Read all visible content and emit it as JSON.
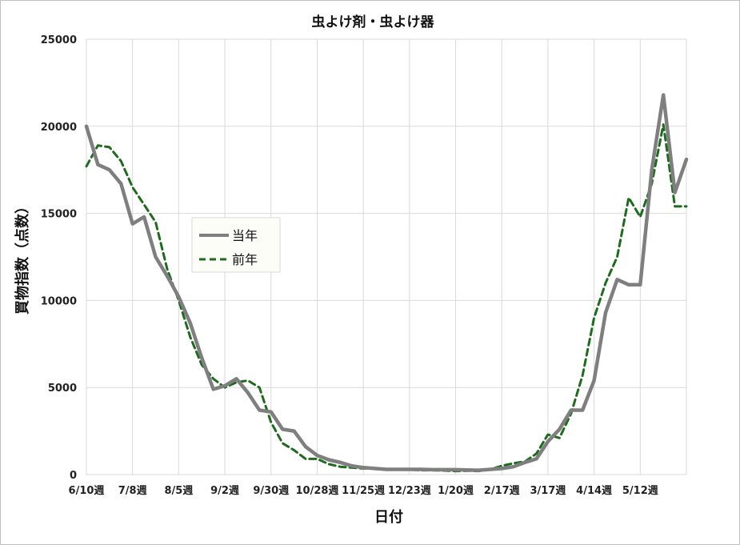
{
  "chart_data": {
    "type": "line",
    "title": "虫よけ剤・虫よけ器",
    "xlabel": "日付",
    "ylabel": "買物指数（点数）",
    "ylim": [
      0,
      25000
    ],
    "yticks": [
      0,
      5000,
      10000,
      15000,
      20000,
      25000
    ],
    "x_tick_labels": [
      "6/10週",
      "7/8週",
      "8/5週",
      "9/2週",
      "9/30週",
      "10/28週",
      "11/25週",
      "12/23週",
      "1/20週",
      "2/17週",
      "3/17週",
      "4/14週",
      "5/12週"
    ],
    "x_tick_step": 4,
    "grid": true,
    "legend_position": "center-left",
    "series": [
      {
        "name": "当年",
        "color": "#7f7f7f",
        "style": "solid",
        "values": [
          20000,
          17800,
          17500,
          16700,
          14400,
          14800,
          12500,
          11400,
          10200,
          8700,
          6700,
          4900,
          5100,
          5500,
          4700,
          3700,
          3600,
          2600,
          2500,
          1600,
          1100,
          850,
          700,
          500,
          400,
          350,
          300,
          300,
          300,
          300,
          280,
          280,
          280,
          260,
          250,
          300,
          350,
          450,
          700,
          900,
          1900,
          2600,
          3700,
          3700,
          5400,
          9300,
          11200,
          10900,
          10900,
          17500,
          21800,
          16200,
          18100
        ]
      },
      {
        "name": "前年",
        "color": "#1e6b1e",
        "style": "dashed",
        "values": [
          17700,
          18900,
          18800,
          18000,
          16500,
          15500,
          14500,
          11800,
          10000,
          7900,
          6300,
          5500,
          5000,
          5300,
          5400,
          5000,
          3000,
          1800,
          1400,
          900,
          900,
          600,
          450,
          400,
          350,
          350,
          300,
          300,
          280,
          250,
          250,
          230,
          200,
          220,
          200,
          300,
          500,
          650,
          750,
          1200,
          2300,
          2100,
          3500,
          5700,
          9000,
          11000,
          12500,
          15900,
          14800,
          16700,
          20100,
          15400,
          15400
        ]
      }
    ]
  }
}
